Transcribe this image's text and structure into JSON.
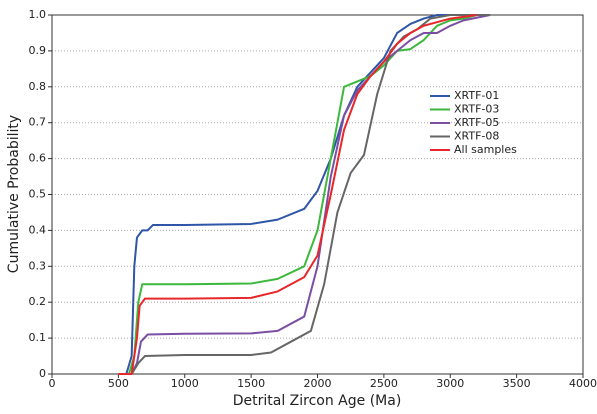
{
  "chart_data": {
    "type": "line",
    "x_label": "Detrital Zircon Age (Ma)",
    "y_label": "Cumulative Probability",
    "xlim": [
      0,
      4000
    ],
    "xticks": [
      0,
      500,
      1000,
      1500,
      2000,
      2500,
      3000,
      3500,
      4000
    ],
    "ylim": [
      0,
      1
    ],
    "yticks": [
      0,
      0.1,
      0.2,
      0.3,
      0.4,
      0.5,
      0.6,
      0.7,
      0.8,
      0.9,
      {
        "value": 1,
        "label": "1.0"
      }
    ],
    "grid": true,
    "legend": "right",
    "series": [
      {
        "name": "XRTF-01",
        "color": "#2f56a6",
        "x": [
          500,
          560,
          600,
          620,
          640,
          680,
          720,
          760,
          1000,
          1500,
          1700,
          1900,
          2000,
          2100,
          2200,
          2300,
          2400,
          2500,
          2600,
          2700,
          2800,
          2900,
          3300
        ],
        "values": [
          0,
          0,
          0.05,
          0.3,
          0.38,
          0.4,
          0.4,
          0.415,
          0.415,
          0.418,
          0.43,
          0.46,
          0.51,
          0.6,
          0.72,
          0.8,
          0.84,
          0.88,
          0.95,
          0.975,
          0.99,
          1,
          1
        ]
      },
      {
        "name": "XRTF-03",
        "color": "#3cb93c",
        "x": [
          500,
          580,
          620,
          650,
          680,
          1000,
          1500,
          1700,
          1900,
          2000,
          2100,
          2200,
          2300,
          2400,
          2500,
          2600,
          2700,
          2800,
          2900,
          3000,
          3100,
          3200
        ],
        "values": [
          0,
          0,
          0.05,
          0.2,
          0.25,
          0.25,
          0.252,
          0.265,
          0.3,
          0.4,
          0.6,
          0.8,
          0.815,
          0.83,
          0.86,
          0.9,
          0.905,
          0.93,
          0.97,
          0.985,
          0.99,
          1
        ]
      },
      {
        "name": "XRTF-05",
        "color": "#7a4fa3",
        "x": [
          500,
          600,
          640,
          670,
          720,
          1000,
          1500,
          1700,
          1900,
          2000,
          2100,
          2200,
          2300,
          2400,
          2500,
          2600,
          2700,
          2800,
          2900,
          3000,
          3100,
          3300
        ],
        "values": [
          0,
          0,
          0.03,
          0.09,
          0.11,
          0.112,
          0.113,
          0.12,
          0.16,
          0.3,
          0.55,
          0.72,
          0.79,
          0.83,
          0.87,
          0.9,
          0.93,
          0.95,
          0.95,
          0.97,
          0.985,
          1
        ]
      },
      {
        "name": "XRTF-08",
        "color": "#666666",
        "x": [
          500,
          600,
          650,
          700,
          1000,
          1500,
          1650,
          1800,
          1950,
          2050,
          2150,
          2250,
          2350,
          2450,
          2550,
          2650,
          2750,
          2850,
          3000,
          3300
        ],
        "values": [
          0,
          0,
          0.03,
          0.05,
          0.053,
          0.053,
          0.06,
          0.09,
          0.12,
          0.25,
          0.45,
          0.56,
          0.61,
          0.78,
          0.9,
          0.94,
          0.96,
          0.99,
          1,
          1
        ]
      },
      {
        "name": "All samples",
        "color": "#e8272a",
        "x": [
          500,
          600,
          640,
          660,
          700,
          1000,
          1500,
          1700,
          1900,
          2000,
          2100,
          2200,
          2300,
          2400,
          2500,
          2600,
          2700,
          2800,
          2900,
          3000,
          3200
        ],
        "values": [
          0,
          0,
          0.1,
          0.19,
          0.21,
          0.21,
          0.212,
          0.23,
          0.27,
          0.33,
          0.5,
          0.68,
          0.78,
          0.83,
          0.87,
          0.92,
          0.95,
          0.97,
          0.98,
          0.99,
          1
        ]
      }
    ]
  }
}
